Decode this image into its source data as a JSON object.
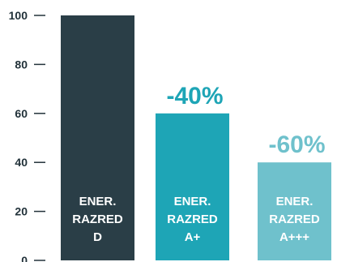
{
  "chart_data": {
    "type": "bar",
    "title": "",
    "xlabel": "",
    "ylabel": "",
    "ylim": [
      0,
      100
    ],
    "yticks": [
      "100",
      "80",
      "60",
      "40",
      "20",
      "0"
    ],
    "yticks_values": [
      100,
      80,
      60,
      40,
      20,
      0
    ],
    "grid": false,
    "categories": [
      {
        "lines": [
          "ENER.",
          "RAZRED",
          "D"
        ]
      },
      {
        "lines": [
          "ENER.",
          "RAZRED",
          "A+"
        ]
      },
      {
        "lines": [
          "ENER.",
          "RAZRED",
          "A+++"
        ]
      }
    ],
    "values": [
      100,
      60,
      40
    ],
    "bar_colors": [
      "#2a3e47",
      "#1ea5b6",
      "#6fc1cc"
    ],
    "annotations": [
      "",
      "-40%",
      "-60%"
    ],
    "annotation_colors": [
      "",
      "#1ea5b6",
      "#6fc1cc"
    ],
    "axis_color": "#22323a"
  }
}
